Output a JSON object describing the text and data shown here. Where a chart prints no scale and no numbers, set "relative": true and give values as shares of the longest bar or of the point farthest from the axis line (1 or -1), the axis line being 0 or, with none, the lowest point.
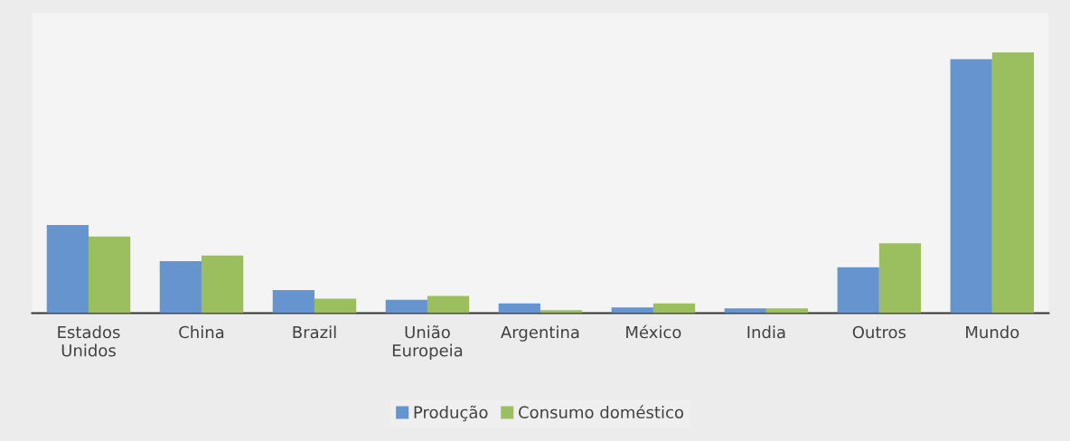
{
  "chart_data": {
    "type": "bar",
    "relative": true,
    "categories": [
      "Estados\nUnidos",
      "China",
      "Brazil",
      "União\nEuropeia",
      "Argentina",
      "México",
      "India",
      "Outros",
      "Mundo"
    ],
    "series": [
      {
        "name": "Produção",
        "color": "#6594cf",
        "values": [
          0.338,
          0.199,
          0.088,
          0.051,
          0.037,
          0.022,
          0.018,
          0.176,
          0.974
        ]
      },
      {
        "name": "Consumo doméstico",
        "color": "#9bbe5e",
        "values": [
          0.294,
          0.221,
          0.055,
          0.066,
          0.011,
          0.037,
          0.018,
          0.268,
          1
        ]
      }
    ],
    "legend": "bottom"
  }
}
